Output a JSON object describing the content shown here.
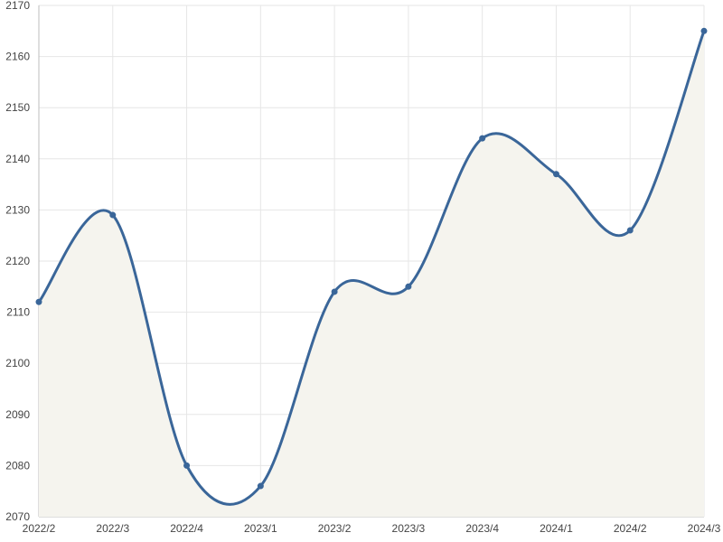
{
  "chart_data": {
    "type": "area",
    "title": "",
    "xlabel": "",
    "ylabel": "",
    "categories": [
      "2022/2",
      "2022/3",
      "2022/4",
      "2023/1",
      "2023/2",
      "2023/3",
      "2023/4",
      "2024/1",
      "2024/2",
      "2024/3"
    ],
    "series": [
      {
        "values": [
          2112,
          2129,
          2080,
          2076,
          2114,
          2115,
          2144,
          2137,
          2126,
          2165
        ]
      }
    ],
    "ylim": [
      2070,
      2170
    ],
    "yticks": [
      2070,
      2080,
      2090,
      2100,
      2110,
      2120,
      2130,
      2140,
      2150,
      2160,
      2170
    ],
    "grid": true,
    "smooth": true,
    "legend": "none",
    "colors": {
      "line": "#3a6699",
      "fill": "#f5f4ee",
      "grid": "#e6e6e6",
      "text": "#444444"
    }
  }
}
